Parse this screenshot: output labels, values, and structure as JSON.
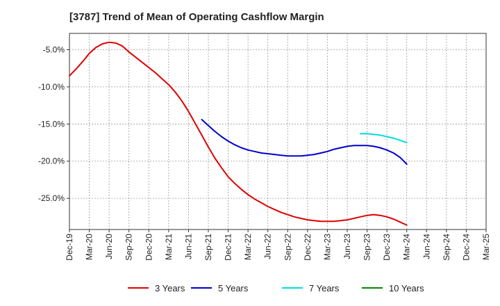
{
  "chart_data": {
    "type": "line",
    "title": "[3787]  Trend of Mean of Operating Cashflow Margin",
    "xlabel": "",
    "ylabel": "",
    "x_tick_labels": [
      "Dec-19",
      "Mar-20",
      "Jun-20",
      "Sep-20",
      "Dec-20",
      "Mar-21",
      "Jun-21",
      "Sep-21",
      "Dec-21",
      "Mar-22",
      "Jun-22",
      "Sep-22",
      "Dec-22",
      "Mar-23",
      "Jun-23",
      "Sep-23",
      "Dec-23",
      "Mar-24",
      "Jun-24",
      "Sep-24",
      "Dec-24",
      "Mar-25"
    ],
    "y_ticks": [
      -5.0,
      -10.0,
      -15.0,
      -20.0,
      -25.0
    ],
    "y_tick_labels": [
      "-5.0%",
      "-10.0%",
      "-15.0%",
      "-20.0%",
      "-25.0%"
    ],
    "ylim": [
      -29.2,
      -2.8
    ],
    "grid": true,
    "legend_position": "bottom",
    "series": [
      {
        "name": "3 Years",
        "color": "#dd0000",
        "x": [
          "Dec-19",
          "Jan-20",
          "Feb-20",
          "Mar-20",
          "Apr-20",
          "May-20",
          "Jun-20",
          "Jul-20",
          "Aug-20",
          "Sep-20",
          "Oct-20",
          "Nov-20",
          "Dec-20",
          "Jan-21",
          "Feb-21",
          "Mar-21",
          "Apr-21",
          "May-21",
          "Jun-21",
          "Jul-21",
          "Aug-21",
          "Sep-21",
          "Oct-21",
          "Nov-21",
          "Dec-21",
          "Jan-22",
          "Feb-22",
          "Mar-22",
          "Apr-22",
          "May-22",
          "Jun-22",
          "Jul-22",
          "Aug-22",
          "Sep-22",
          "Oct-22",
          "Nov-22",
          "Dec-22",
          "Jan-23",
          "Feb-23",
          "Mar-23",
          "Apr-23",
          "May-23",
          "Jun-23",
          "Jul-23",
          "Aug-23",
          "Sep-23",
          "Oct-23",
          "Nov-23",
          "Dec-23",
          "Jan-24",
          "Feb-24",
          "Mar-24"
        ],
        "values": [
          -8.5,
          -7.6,
          -6.6,
          -5.5,
          -4.7,
          -4.2,
          -4.0,
          -4.1,
          -4.5,
          -5.3,
          -6.0,
          -6.7,
          -7.4,
          -8.1,
          -8.9,
          -9.7,
          -10.7,
          -11.9,
          -13.3,
          -14.9,
          -16.5,
          -18.1,
          -19.6,
          -20.9,
          -22.1,
          -23.0,
          -23.8,
          -24.5,
          -25.1,
          -25.6,
          -26.1,
          -26.5,
          -26.9,
          -27.2,
          -27.5,
          -27.7,
          -27.9,
          -28.0,
          -28.1,
          -28.1,
          -28.1,
          -28.0,
          -27.9,
          -27.7,
          -27.5,
          -27.3,
          -27.2,
          -27.3,
          -27.5,
          -27.8,
          -28.2,
          -28.6
        ]
      },
      {
        "name": "5 Years",
        "color": "#0000cc",
        "x": [
          "Aug-21",
          "Sep-21",
          "Oct-21",
          "Nov-21",
          "Dec-21",
          "Jan-22",
          "Feb-22",
          "Mar-22",
          "Apr-22",
          "May-22",
          "Jun-22",
          "Jul-22",
          "Aug-22",
          "Sep-22",
          "Oct-22",
          "Nov-22",
          "Dec-22",
          "Jan-23",
          "Feb-23",
          "Mar-23",
          "Apr-23",
          "May-23",
          "Jun-23",
          "Jul-23",
          "Aug-23",
          "Sep-23",
          "Oct-23",
          "Nov-23",
          "Dec-23",
          "Jan-24",
          "Feb-24",
          "Mar-24"
        ],
        "values": [
          -14.4,
          -15.2,
          -16.0,
          -16.7,
          -17.3,
          -17.8,
          -18.2,
          -18.5,
          -18.7,
          -18.9,
          -19.0,
          -19.1,
          -19.2,
          -19.3,
          -19.3,
          -19.3,
          -19.2,
          -19.1,
          -18.9,
          -18.7,
          -18.4,
          -18.2,
          -18.0,
          -17.9,
          -17.9,
          -17.9,
          -18.0,
          -18.2,
          -18.5,
          -18.9,
          -19.5,
          -20.4
        ]
      },
      {
        "name": "7 Years",
        "color": "#00dddd",
        "x": [
          "Aug-23",
          "Sep-23",
          "Oct-23",
          "Nov-23",
          "Dec-23",
          "Jan-24",
          "Feb-24",
          "Mar-24"
        ],
        "values": [
          -16.3,
          -16.3,
          -16.4,
          -16.5,
          -16.7,
          -16.9,
          -17.2,
          -17.5
        ]
      },
      {
        "name": "10 Years",
        "color": "#008800",
        "x": [],
        "values": []
      }
    ]
  }
}
